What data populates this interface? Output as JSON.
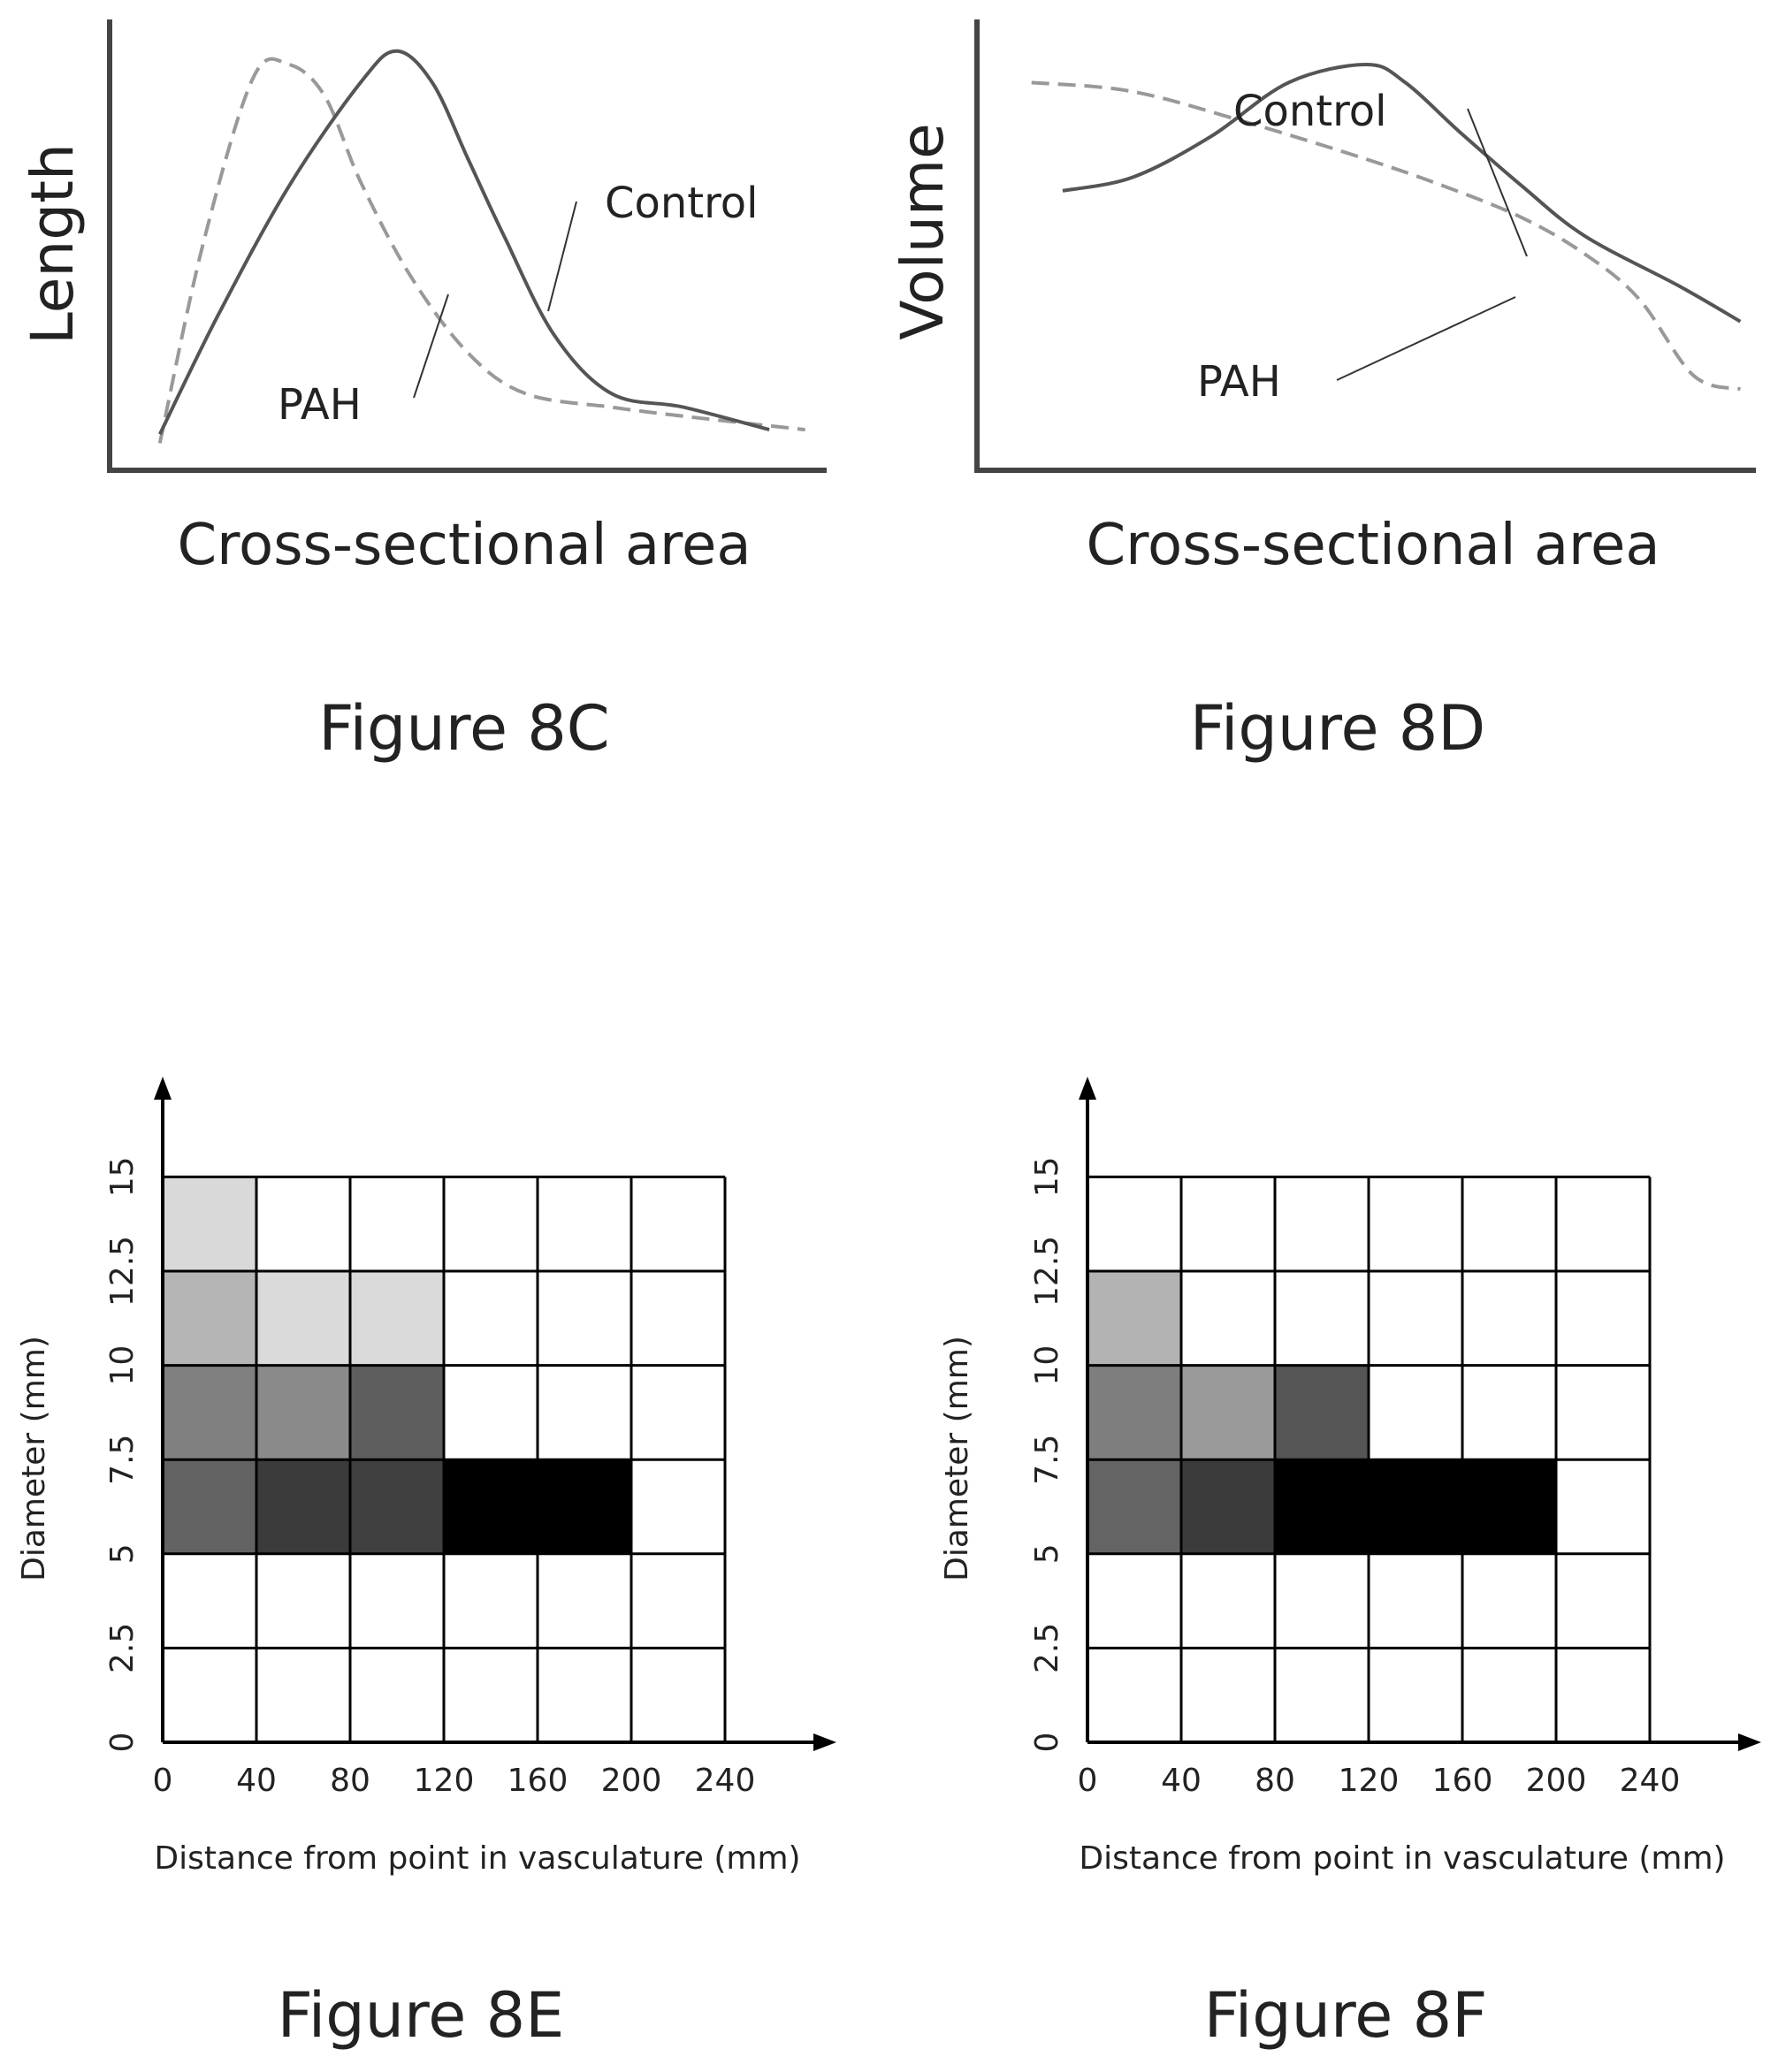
{
  "chart_data": [
    {
      "id": "fig8c",
      "type": "line",
      "caption": "Figure 8C",
      "xlabel": "Cross-sectional area",
      "ylabel": "Length",
      "grid": false,
      "series": [
        {
          "name": "Control",
          "style": "solid",
          "color": "#555555",
          "x": [
            0.07,
            0.15,
            0.25,
            0.35,
            0.4,
            0.45,
            0.5,
            0.55,
            0.62,
            0.7,
            0.8,
            0.92
          ],
          "y": [
            0.08,
            0.34,
            0.63,
            0.86,
            0.93,
            0.86,
            0.69,
            0.52,
            0.3,
            0.17,
            0.14,
            0.09
          ]
        },
        {
          "name": "PAH",
          "style": "dashed",
          "color": "#999999",
          "x": [
            0.07,
            0.13,
            0.2,
            0.25,
            0.3,
            0.35,
            0.42,
            0.5,
            0.58,
            0.7,
            0.8,
            0.97
          ],
          "y": [
            0.06,
            0.5,
            0.87,
            0.9,
            0.83,
            0.64,
            0.43,
            0.26,
            0.17,
            0.14,
            0.12,
            0.09
          ]
        }
      ],
      "annotations": [
        {
          "text": "Control",
          "series": "Control"
        },
        {
          "text": "PAH",
          "series": "PAH"
        }
      ]
    },
    {
      "id": "fig8d",
      "type": "line",
      "caption": "Figure 8D",
      "xlabel": "Cross-sectional area",
      "ylabel": "Volume",
      "grid": false,
      "series": [
        {
          "name": "Control",
          "style": "solid",
          "color": "#555555",
          "x": [
            0.11,
            0.2,
            0.3,
            0.4,
            0.5,
            0.55,
            0.62,
            0.7,
            0.78,
            0.9,
            0.98
          ],
          "y": [
            0.62,
            0.65,
            0.74,
            0.86,
            0.9,
            0.86,
            0.75,
            0.63,
            0.52,
            0.41,
            0.33
          ]
        },
        {
          "name": "PAH",
          "style": "dashed",
          "color": "#999999",
          "x": [
            0.07,
            0.2,
            0.35,
            0.5,
            0.6,
            0.7,
            0.78,
            0.85,
            0.92,
            0.98
          ],
          "y": [
            0.86,
            0.84,
            0.77,
            0.69,
            0.63,
            0.56,
            0.48,
            0.38,
            0.21,
            0.18
          ]
        }
      ],
      "annotations": [
        {
          "text": "Control",
          "series": "Control"
        },
        {
          "text": "PAH",
          "series": "PAH"
        }
      ]
    },
    {
      "id": "fig8e",
      "type": "heatmap",
      "caption": "Figure 8E",
      "xlabel": "Distance from point in vasculature (mm)",
      "ylabel": "Diameter (mm)",
      "x_ticks": [
        "0",
        "40",
        "80",
        "120",
        "160",
        "200",
        "240"
      ],
      "y_ticks": [
        "0",
        "2.5",
        "5",
        "7.5",
        "10",
        "12.5",
        "15"
      ],
      "xlim": [
        0,
        240
      ],
      "ylim": [
        0,
        15
      ],
      "cells": [
        {
          "x": [
            0,
            40
          ],
          "y": [
            12.5,
            15
          ],
          "fill": "#d9d9d9"
        },
        {
          "x": [
            0,
            40
          ],
          "y": [
            10,
            12.5
          ],
          "fill": "#b5b5b5"
        },
        {
          "x": [
            40,
            80
          ],
          "y": [
            10,
            12.5
          ],
          "fill": "#dadada"
        },
        {
          "x": [
            80,
            120
          ],
          "y": [
            10,
            12.5
          ],
          "fill": "#dadada"
        },
        {
          "x": [
            0,
            40
          ],
          "y": [
            7.5,
            10
          ],
          "fill": "#808080"
        },
        {
          "x": [
            40,
            80
          ],
          "y": [
            7.5,
            10
          ],
          "fill": "#8a8a8a"
        },
        {
          "x": [
            80,
            120
          ],
          "y": [
            7.5,
            10
          ],
          "fill": "#5e5e5e"
        },
        {
          "x": [
            0,
            40
          ],
          "y": [
            5,
            7.5
          ],
          "fill": "#636363"
        },
        {
          "x": [
            40,
            80
          ],
          "y": [
            5,
            7.5
          ],
          "fill": "#3b3b3b"
        },
        {
          "x": [
            80,
            120
          ],
          "y": [
            5,
            7.5
          ],
          "fill": "#404040"
        },
        {
          "x": [
            120,
            200
          ],
          "y": [
            5,
            7.5
          ],
          "fill": "#000000"
        }
      ]
    },
    {
      "id": "fig8f",
      "type": "heatmap",
      "caption": "Figure 8F",
      "xlabel": "Distance from point in vasculature (mm)",
      "ylabel": "Diameter (mm)",
      "x_ticks": [
        "0",
        "40",
        "80",
        "120",
        "160",
        "200",
        "240"
      ],
      "y_ticks": [
        "0",
        "2.5",
        "5",
        "7.5",
        "10",
        "12.5",
        "15"
      ],
      "xlim": [
        0,
        240
      ],
      "ylim": [
        0,
        15
      ],
      "cells": [
        {
          "x": [
            0,
            40
          ],
          "y": [
            10,
            12.5
          ],
          "fill": "#b3b3b3"
        },
        {
          "x": [
            0,
            40
          ],
          "y": [
            7.5,
            10
          ],
          "fill": "#7e7e7e"
        },
        {
          "x": [
            40,
            80
          ],
          "y": [
            7.5,
            10
          ],
          "fill": "#9a9a9a"
        },
        {
          "x": [
            80,
            120
          ],
          "y": [
            7.5,
            10
          ],
          "fill": "#555555"
        },
        {
          "x": [
            0,
            40
          ],
          "y": [
            5,
            7.5
          ],
          "fill": "#646464"
        },
        {
          "x": [
            40,
            80
          ],
          "y": [
            5,
            7.5
          ],
          "fill": "#3b3b3b"
        },
        {
          "x": [
            80,
            200
          ],
          "y": [
            5,
            7.5
          ],
          "fill": "#000000"
        }
      ]
    }
  ]
}
